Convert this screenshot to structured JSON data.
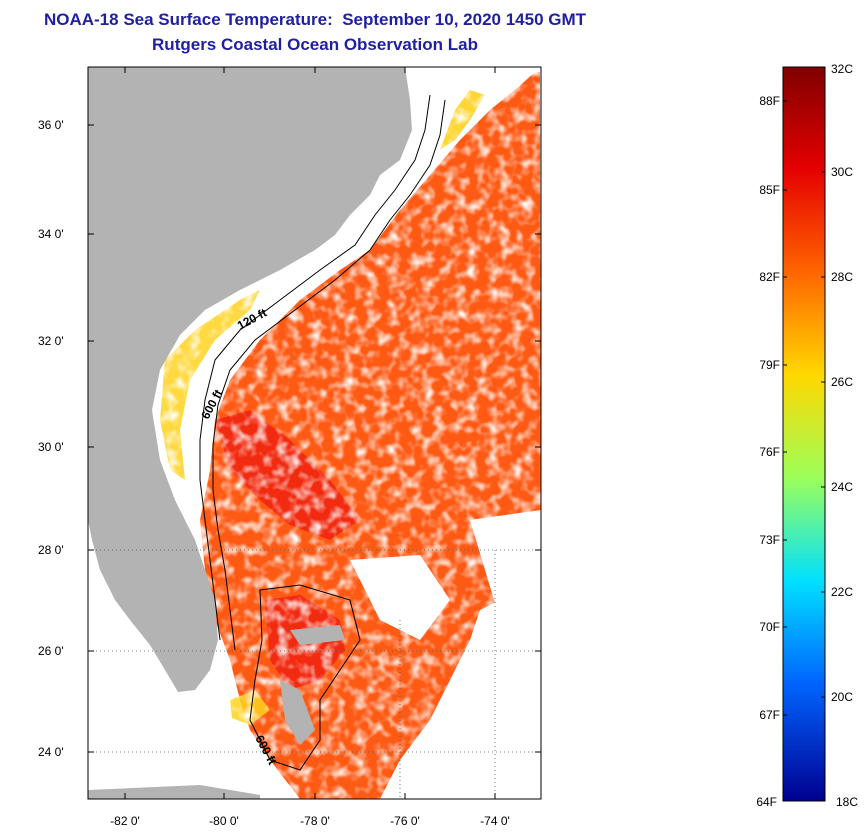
{
  "title": {
    "line1": "NOAA-18 Sea Surface Temperature:  September 10, 2020 1450 GMT",
    "line2": "Rutgers Coastal Ocean Observation Lab"
  },
  "map": {
    "lat_ticks": [
      "36 0'",
      "34 0'",
      "32 0'",
      "30 0'",
      "28 0'",
      "26 0'",
      "24 0'"
    ],
    "lon_ticks": [
      "-82 0'",
      "-80 0'",
      "-78 0'",
      "-76 0'",
      "-74 0'"
    ],
    "isobath_labels": [
      "120 ft",
      "600 ft",
      "600 ft"
    ],
    "colors": {
      "land": "#b3b3b3",
      "water_cloud": "#ffffff",
      "sst_warm": "#ff5a14",
      "sst_hot": "#f22a10",
      "sst_cool": "#ffd21e"
    }
  },
  "colorbar": {
    "celsius": [
      "32C",
      "30C",
      "28C",
      "26C",
      "24C",
      "22C",
      "20C",
      "18C"
    ],
    "fahrenheit": [
      "88F",
      "85F",
      "82F",
      "79F",
      "76F",
      "73F",
      "70F",
      "67F",
      "64F"
    ],
    "colors": [
      "#800000",
      "#e60000",
      "#ff6600",
      "#ffd800",
      "#9cff5a",
      "#00e1ff",
      "#0064ff",
      "#000090"
    ]
  }
}
